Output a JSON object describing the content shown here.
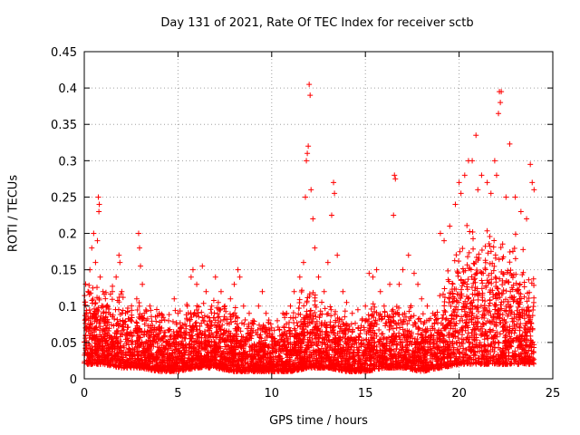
{
  "chart_data": {
    "type": "scatter",
    "title": "Day 131 of 2021, Rate Of TEC Index for receiver sctb",
    "xlabel": "GPS time / hours",
    "ylabel": "ROTI / TECUs",
    "xlim": [
      0,
      25
    ],
    "ylim": [
      0,
      0.45
    ],
    "xticks": [
      0,
      5,
      10,
      15,
      20,
      25
    ],
    "yticks": [
      0,
      0.05,
      0.1,
      0.15,
      0.2,
      0.25,
      0.3,
      0.35,
      0.4,
      0.45
    ],
    "xtick_labels": [
      "0",
      "5",
      "10",
      "15",
      "20",
      "25"
    ],
    "ytick_labels": [
      "0",
      "0.05",
      "0.1",
      "0.15",
      "0.2",
      "0.25",
      "0.3",
      "0.35",
      "0.4",
      "0.45"
    ],
    "grid": true,
    "marker": "+",
    "color": "#ff0000",
    "series": [
      {
        "name": "ROTI",
        "points": [
          [
            0.1,
            0.09
          ],
          [
            0.2,
            0.12
          ],
          [
            0.3,
            0.15
          ],
          [
            0.4,
            0.18
          ],
          [
            0.5,
            0.2
          ],
          [
            0.6,
            0.16
          ],
          [
            0.7,
            0.19
          ],
          [
            0.75,
            0.25
          ],
          [
            0.8,
            0.24
          ],
          [
            0.78,
            0.23
          ],
          [
            0.85,
            0.14
          ],
          [
            1.0,
            0.12
          ],
          [
            1.2,
            0.1
          ],
          [
            1.5,
            0.12
          ],
          [
            1.7,
            0.14
          ],
          [
            1.85,
            0.17
          ],
          [
            1.9,
            0.16
          ],
          [
            2.0,
            0.12
          ],
          [
            2.2,
            0.09
          ],
          [
            2.5,
            0.08
          ],
          [
            2.8,
            0.11
          ],
          [
            2.9,
            0.2
          ],
          [
            2.95,
            0.18
          ],
          [
            3.0,
            0.155
          ],
          [
            3.1,
            0.13
          ],
          [
            3.2,
            0.09
          ],
          [
            3.5,
            0.1
          ],
          [
            3.8,
            0.085
          ],
          [
            4.0,
            0.09
          ],
          [
            4.5,
            0.08
          ],
          [
            4.8,
            0.11
          ],
          [
            5.0,
            0.09
          ],
          [
            5.5,
            0.1
          ],
          [
            5.7,
            0.14
          ],
          [
            5.8,
            0.15
          ],
          [
            6.0,
            0.13
          ],
          [
            6.3,
            0.155
          ],
          [
            6.5,
            0.12
          ],
          [
            6.8,
            0.1
          ],
          [
            7.0,
            0.14
          ],
          [
            7.3,
            0.12
          ],
          [
            7.5,
            0.1
          ],
          [
            7.8,
            0.11
          ],
          [
            8.0,
            0.13
          ],
          [
            8.2,
            0.15
          ],
          [
            8.3,
            0.14
          ],
          [
            8.5,
            0.1
          ],
          [
            8.8,
            0.09
          ],
          [
            9.0,
            0.08
          ],
          [
            9.3,
            0.1
          ],
          [
            9.5,
            0.12
          ],
          [
            9.7,
            0.09
          ],
          [
            10.0,
            0.07
          ],
          [
            10.3,
            0.08
          ],
          [
            10.6,
            0.09
          ],
          [
            10.8,
            0.09
          ],
          [
            11.0,
            0.1
          ],
          [
            11.2,
            0.12
          ],
          [
            11.5,
            0.14
          ],
          [
            11.7,
            0.16
          ],
          [
            11.8,
            0.25
          ],
          [
            11.85,
            0.3
          ],
          [
            11.9,
            0.31
          ],
          [
            11.95,
            0.32
          ],
          [
            12.0,
            0.405
          ],
          [
            12.05,
            0.39
          ],
          [
            12.1,
            0.26
          ],
          [
            12.2,
            0.22
          ],
          [
            12.3,
            0.18
          ],
          [
            12.5,
            0.14
          ],
          [
            12.8,
            0.12
          ],
          [
            13.0,
            0.16
          ],
          [
            13.2,
            0.225
          ],
          [
            13.3,
            0.27
          ],
          [
            13.35,
            0.255
          ],
          [
            13.5,
            0.17
          ],
          [
            13.8,
            0.12
          ],
          [
            14.0,
            0.105
          ],
          [
            14.3,
            0.09
          ],
          [
            14.6,
            0.095
          ],
          [
            15.0,
            0.1
          ],
          [
            15.2,
            0.145
          ],
          [
            15.4,
            0.14
          ],
          [
            15.6,
            0.15
          ],
          [
            15.8,
            0.12
          ],
          [
            16.0,
            0.1
          ],
          [
            16.3,
            0.13
          ],
          [
            16.5,
            0.225
          ],
          [
            16.55,
            0.28
          ],
          [
            16.6,
            0.275
          ],
          [
            16.8,
            0.13
          ],
          [
            17.0,
            0.15
          ],
          [
            17.3,
            0.17
          ],
          [
            17.6,
            0.145
          ],
          [
            17.8,
            0.13
          ],
          [
            18.0,
            0.11
          ],
          [
            18.3,
            0.1
          ],
          [
            18.6,
            0.09
          ],
          [
            19.0,
            0.2
          ],
          [
            19.2,
            0.19
          ],
          [
            19.5,
            0.21
          ],
          [
            19.8,
            0.24
          ],
          [
            20.0,
            0.27
          ],
          [
            20.1,
            0.255
          ],
          [
            20.3,
            0.28
          ],
          [
            20.5,
            0.3
          ],
          [
            20.7,
            0.3
          ],
          [
            20.9,
            0.335
          ],
          [
            21.0,
            0.26
          ],
          [
            21.2,
            0.28
          ],
          [
            21.5,
            0.27
          ],
          [
            21.7,
            0.255
          ],
          [
            21.9,
            0.3
          ],
          [
            22.0,
            0.28
          ],
          [
            22.1,
            0.365
          ],
          [
            22.15,
            0.395
          ],
          [
            22.2,
            0.38
          ],
          [
            22.25,
            0.395
          ],
          [
            22.5,
            0.25
          ],
          [
            22.7,
            0.323
          ],
          [
            23.0,
            0.25
          ],
          [
            23.3,
            0.23
          ],
          [
            23.6,
            0.22
          ],
          [
            23.8,
            0.295
          ],
          [
            23.9,
            0.27
          ],
          [
            24.0,
            0.26
          ]
        ],
        "density_profile": {
          "hours": [
            0,
            1,
            2,
            3,
            4,
            5,
            6,
            7,
            8,
            9,
            10,
            11,
            12,
            13,
            14,
            15,
            16,
            17,
            18,
            19,
            20,
            21,
            22,
            23,
            24
          ],
          "upper": [
            0.12,
            0.11,
            0.1,
            0.09,
            0.08,
            0.08,
            0.09,
            0.09,
            0.08,
            0.07,
            0.07,
            0.08,
            0.12,
            0.09,
            0.08,
            0.08,
            0.09,
            0.09,
            0.08,
            0.1,
            0.16,
            0.18,
            0.18,
            0.16,
            0.12
          ],
          "lower": [
            0.02,
            0.02,
            0.015,
            0.015,
            0.01,
            0.01,
            0.015,
            0.015,
            0.01,
            0.01,
            0.01,
            0.01,
            0.015,
            0.015,
            0.01,
            0.01,
            0.015,
            0.015,
            0.01,
            0.015,
            0.02,
            0.02,
            0.02,
            0.02,
            0.02
          ]
        }
      }
    ]
  }
}
